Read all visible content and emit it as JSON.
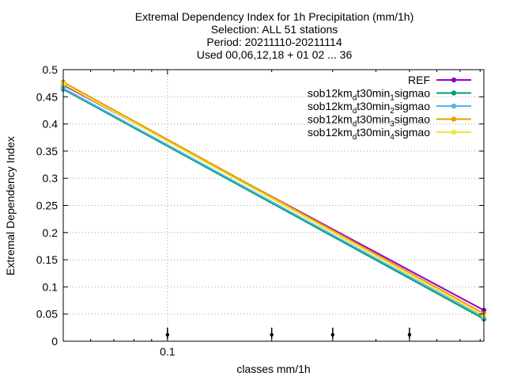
{
  "chart_data": {
    "type": "line",
    "title_lines": [
      "Extremal Dependency Index  for 1h Precipitation (mm/1h)",
      "Selection: ALL     51 stations",
      "Period: 20211110-20211114",
      "Used 00,06,12,18 + 01 02 ... 36"
    ],
    "xlabel": "classes mm/1h",
    "ylabel": "Extremal Dependency Index",
    "x_scale": "log",
    "xlim": [
      0.05,
      0.82
    ],
    "ylim": [
      0,
      0.5
    ],
    "x_ticks": [
      {
        "value": 0.1,
        "label": "0.1"
      }
    ],
    "y_ticks": [
      {
        "value": 0,
        "label": "0"
      },
      {
        "value": 0.05,
        "label": "0.05"
      },
      {
        "value": 0.1,
        "label": "0.1"
      },
      {
        "value": 0.15,
        "label": "0.15"
      },
      {
        "value": 0.2,
        "label": "0.2"
      },
      {
        "value": 0.25,
        "label": "0.25"
      },
      {
        "value": 0.3,
        "label": "0.3"
      },
      {
        "value": 0.35,
        "label": "0.35"
      },
      {
        "value": 0.4,
        "label": "0.4"
      },
      {
        "value": 0.45,
        "label": "0.45"
      },
      {
        "value": 0.5,
        "label": "0.5"
      }
    ],
    "grid": true,
    "legend_position": "top-right",
    "threshold_markers_x": [
      0.1,
      0.2,
      0.3,
      0.5
    ],
    "series": [
      {
        "name": "REF",
        "name_parts": [
          [
            "REF",
            "n"
          ]
        ],
        "color": "#9400d3",
        "x": [
          0.05,
          0.82
        ],
        "y": [
          0.472,
          0.057
        ]
      },
      {
        "name": "sob12km_d t30min_1 sigmao",
        "name_parts": [
          [
            "sob12km",
            "n"
          ],
          [
            "d",
            "sub"
          ],
          [
            "t30min",
            "n"
          ],
          [
            "1",
            "sub"
          ],
          [
            "sigmao",
            "n"
          ]
        ],
        "color": "#009e73",
        "x": [
          0.05,
          0.82
        ],
        "y": [
          0.464,
          0.041
        ]
      },
      {
        "name": "sob12km_d t30min_2 sigmao",
        "name_parts": [
          [
            "sob12km",
            "n"
          ],
          [
            "d",
            "sub"
          ],
          [
            "t30min",
            "n"
          ],
          [
            "2",
            "sub"
          ],
          [
            "sigmao",
            "n"
          ]
        ],
        "color": "#56b4e9",
        "x": [
          0.05,
          0.82
        ],
        "y": [
          0.466,
          0.044
        ]
      },
      {
        "name": "sob12km_d t30min_3 sigmao",
        "name_parts": [
          [
            "sob12km",
            "n"
          ],
          [
            "d",
            "sub"
          ],
          [
            "t30min",
            "n"
          ],
          [
            "3",
            "sub"
          ],
          [
            "sigmao",
            "n"
          ]
        ],
        "color": "#e69f00",
        "x": [
          0.05,
          0.82
        ],
        "y": [
          0.477,
          0.051
        ]
      },
      {
        "name": "sob12km_d t30min_4 sigmao",
        "name_parts": [
          [
            "sob12km",
            "n"
          ],
          [
            "d",
            "sub"
          ],
          [
            "t30min",
            "n"
          ],
          [
            "4",
            "sub"
          ],
          [
            "sigmao",
            "n"
          ]
        ],
        "color": "#f0e442",
        "x": [
          0.05,
          0.82
        ],
        "y": [
          0.474,
          0.047
        ]
      }
    ]
  }
}
